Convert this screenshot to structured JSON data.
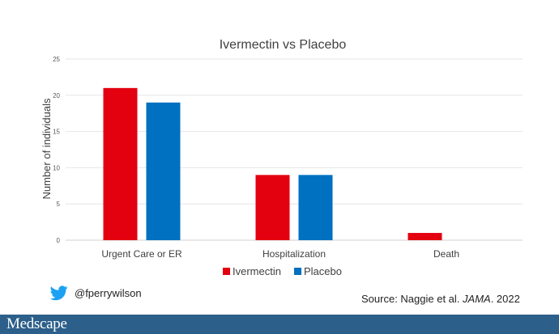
{
  "chart_data": {
    "type": "bar",
    "title": "Ivermectin vs Placebo",
    "xlabel": "",
    "ylabel": "Number of individuals",
    "ylim": [
      0,
      25
    ],
    "yticks": [
      0,
      5,
      10,
      15,
      20,
      25
    ],
    "grid": true,
    "legend": "bottom",
    "categories": [
      "Urgent Care or ER",
      "Hospitalization",
      "Death"
    ],
    "series": [
      {
        "name": "Ivermectin",
        "values": [
          21,
          9,
          1
        ],
        "color": "#e3000f"
      },
      {
        "name": "Placebo",
        "values": [
          19,
          9,
          0
        ],
        "color": "#0070c0"
      }
    ]
  },
  "footer": {
    "handle": "@fperrywilson",
    "twitter_icon": "twitter-bird-icon",
    "source_prefix": "Source: Naggie et al. ",
    "source_journal": "JAMA",
    "source_suffix": ". 2022",
    "logo": "Medscape",
    "bar_color": "#2c5f8a"
  }
}
